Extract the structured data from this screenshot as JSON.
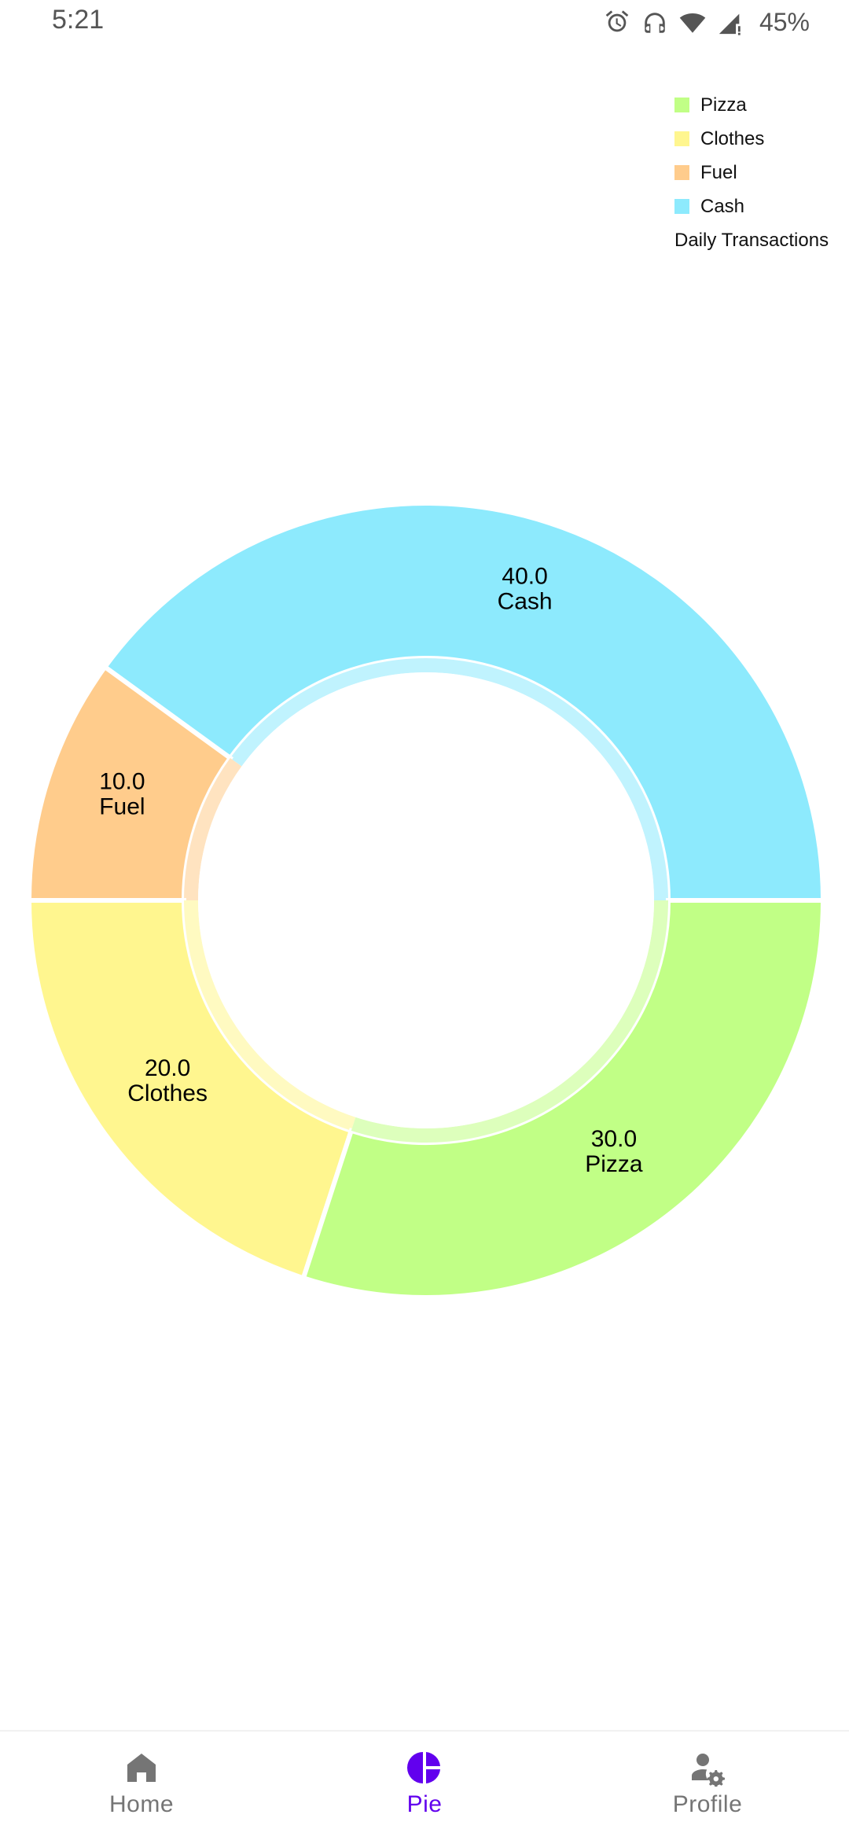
{
  "status_bar": {
    "time": "5:21",
    "battery": "45%",
    "icons": [
      "alarm-icon",
      "headphones-icon",
      "wifi-icon",
      "cell-signal-icon"
    ]
  },
  "legend": {
    "items": [
      {
        "label": "Pizza",
        "color": "#c1ff86"
      },
      {
        "label": "Clothes",
        "color": "#fff68f"
      },
      {
        "label": "Fuel",
        "color": "#ffcc8c"
      },
      {
        "label": "Cash",
        "color": "#8deafd"
      }
    ],
    "description": "Daily Transactions"
  },
  "chart_data": {
    "type": "pie",
    "variant": "donut",
    "categories": [
      "Cash",
      "Fuel",
      "Clothes",
      "Pizza"
    ],
    "values": [
      40.0,
      10.0,
      20.0,
      30.0
    ],
    "colors": [
      "#8deafd",
      "#ffcc8c",
      "#fff68f",
      "#c1ff86"
    ],
    "slice_labels": [
      {
        "value": "40.0",
        "name": "Cash"
      },
      {
        "value": "10.0",
        "name": "Fuel"
      },
      {
        "value": "20.0",
        "name": "Clothes"
      },
      {
        "value": "30.0",
        "name": "Pizza"
      }
    ],
    "description": "Daily Transactions",
    "legend_position": "top-right"
  },
  "bottom_nav": {
    "items": [
      {
        "label": "Home",
        "icon": "home-icon",
        "active": false
      },
      {
        "label": "Pie",
        "icon": "pie-chart-icon",
        "active": true
      },
      {
        "label": "Profile",
        "icon": "profile-settings-icon",
        "active": false
      }
    ],
    "active_color": "#6200ee",
    "inactive_color": "#757575"
  }
}
